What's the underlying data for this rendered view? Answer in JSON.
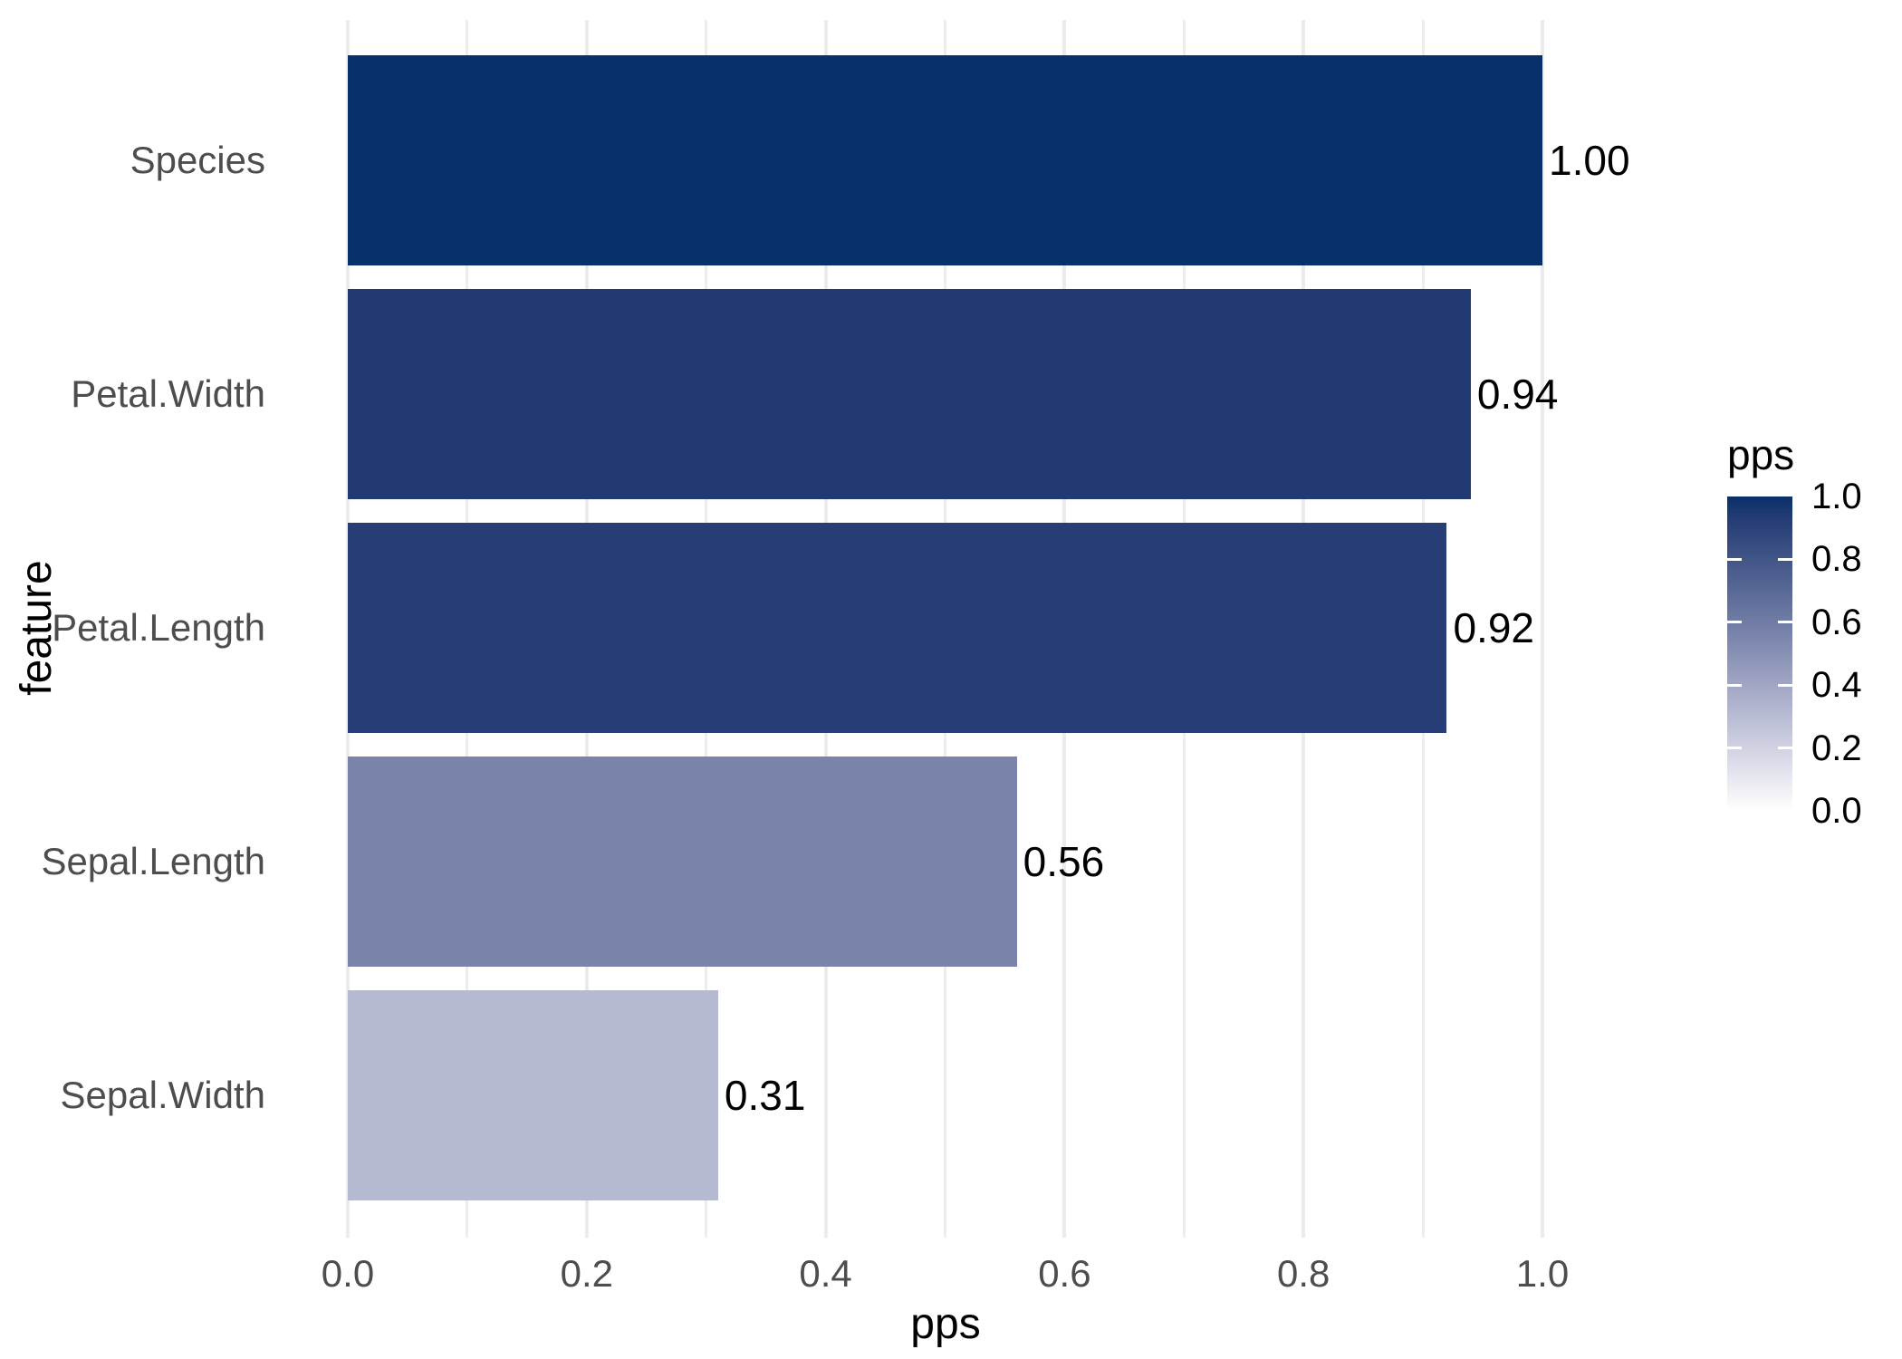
{
  "chart_data": {
    "type": "bar",
    "orientation": "horizontal",
    "xlabel": "pps",
    "ylabel": "feature",
    "categories": [
      "Species",
      "Petal.Width",
      "Petal.Length",
      "Sepal.Length",
      "Sepal.Width"
    ],
    "values": [
      1.0,
      0.94,
      0.92,
      0.56,
      0.31
    ],
    "value_labels": [
      "1.00",
      "0.94",
      "0.92",
      "0.56",
      "0.31"
    ],
    "bar_colors": [
      "#08306B",
      "#213A72",
      "#263E75",
      "#7A84AB",
      "#B6B9D2"
    ],
    "xlim": [
      0,
      1.05
    ],
    "x_major_ticks": [
      0.0,
      0.2,
      0.4,
      0.6,
      0.8,
      1.0
    ],
    "x_major_tick_labels": [
      "0.0",
      "0.2",
      "0.4",
      "0.6",
      "0.8",
      "1.0"
    ],
    "x_minor_ticks": [
      0.1,
      0.3,
      0.5,
      0.7,
      0.9
    ],
    "grid": true,
    "legend_position": "right",
    "legend": {
      "title": "pps",
      "breaks": [
        1.0,
        0.8,
        0.6,
        0.4,
        0.2,
        0.0
      ],
      "break_labels": [
        "1.0",
        "0.8",
        "0.6",
        "0.4",
        "0.2",
        "0.0"
      ],
      "tick_marks_at": [
        0.8,
        0.6,
        0.4,
        0.2
      ],
      "gradient_stops": [
        {
          "pos": 0,
          "color": "#08306B"
        },
        {
          "pos": 6,
          "color": "#213A72"
        },
        {
          "pos": 8,
          "color": "#263E75"
        },
        {
          "pos": 25,
          "color": "#4D5F8E"
        },
        {
          "pos": 44,
          "color": "#7A84AB"
        },
        {
          "pos": 69,
          "color": "#B6B9D2"
        },
        {
          "pos": 85,
          "color": "#DCDDE9"
        },
        {
          "pos": 100,
          "color": "#FFFFFF"
        }
      ]
    },
    "colors": {
      "grid_major": "#EBEBEB",
      "grid_minor": "#EDEDED",
      "axis_text": "#4D4D4D",
      "label_text": "#000000",
      "background": "#FFFFFF"
    }
  }
}
